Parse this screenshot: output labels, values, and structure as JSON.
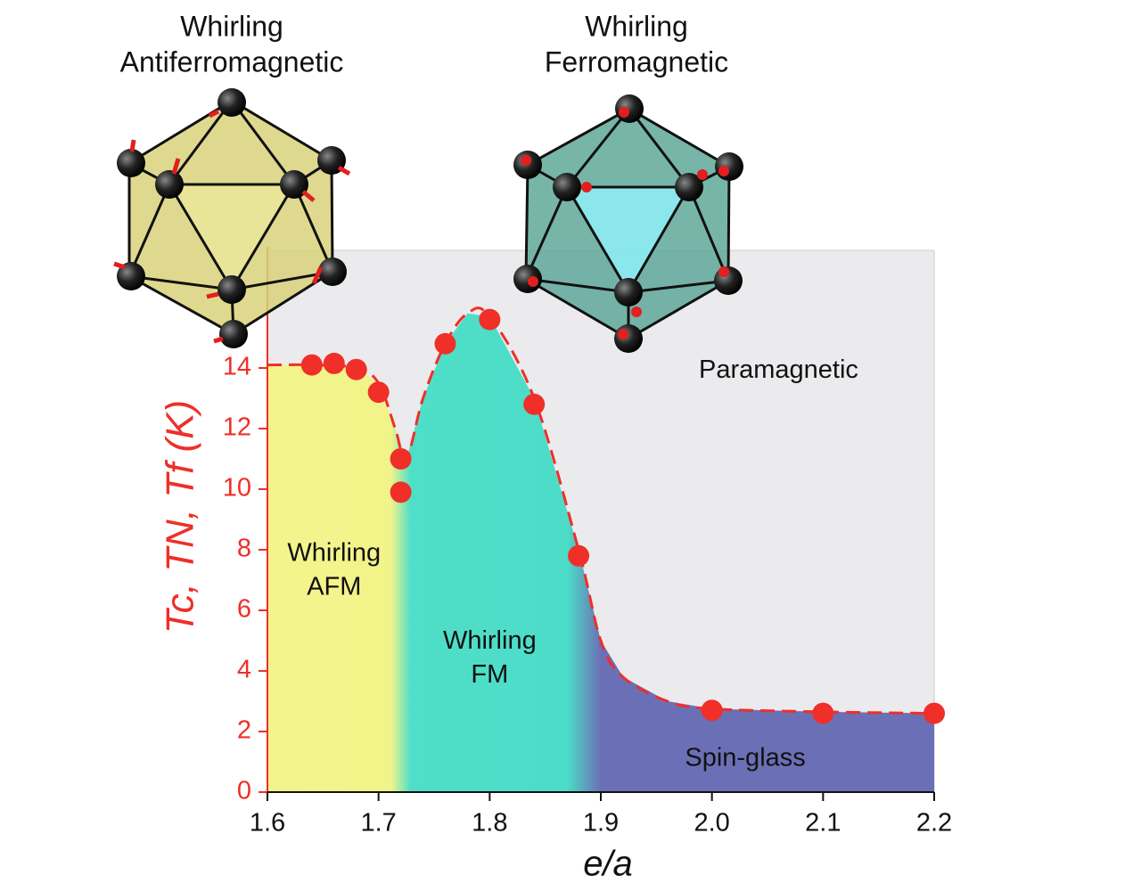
{
  "chart_data": {
    "type": "scatter",
    "xlabel": "e/a",
    "ylabel": "Tc, TN, Tf (K)",
    "x": [
      1.64,
      1.66,
      1.68,
      1.7,
      1.72,
      1.72,
      1.76,
      1.8,
      1.84,
      1.88,
      2.0,
      2.1,
      2.2
    ],
    "values": [
      14.1,
      14.15,
      13.95,
      13.2,
      11.0,
      9.9,
      14.8,
      15.6,
      12.8,
      7.8,
      2.7,
      2.6,
      2.6
    ],
    "color": "#ef2f28",
    "boundary": {
      "x": [
        1.6,
        1.64,
        1.68,
        1.7,
        1.715,
        1.725,
        1.74,
        1.76,
        1.78,
        1.8,
        1.84,
        1.88,
        1.9,
        1.92,
        1.96,
        2.0,
        2.1,
        2.2
      ],
      "values": [
        14.1,
        14.1,
        14.0,
        13.5,
        12.0,
        11.0,
        13.0,
        14.8,
        15.8,
        15.7,
        13.0,
        8.0,
        5.0,
        3.8,
        3.0,
        2.75,
        2.65,
        2.6
      ]
    },
    "xlim": [
      1.6,
      2.2
    ],
    "ylim": [
      0,
      18
    ],
    "xticks": [
      1.6,
      1.7,
      1.8,
      1.9,
      {
        "value": 2,
        "label": "2.0"
      },
      2.1,
      2.2
    ],
    "yticks": [
      0,
      2,
      4,
      6,
      8,
      10,
      12,
      14
    ],
    "regions": [
      {
        "lines": [
          "Whirling",
          "AFM"
        ],
        "x": 1.66,
        "y": 7.3
      },
      {
        "lines": [
          "Whirling",
          "FM"
        ],
        "x": 1.8,
        "y": 4.4
      },
      {
        "lines": [
          "Spin-glass"
        ],
        "x": 2.03,
        "y": 1.1
      },
      {
        "lines": [
          "Paramagnetic"
        ],
        "x": 2.06,
        "y": 13.9
      }
    ],
    "structures": [
      {
        "lines": [
          "Whirling",
          "Antiferromagnetic"
        ]
      },
      {
        "lines": [
          "Whirling",
          "Ferromagnetic"
        ]
      }
    ]
  }
}
